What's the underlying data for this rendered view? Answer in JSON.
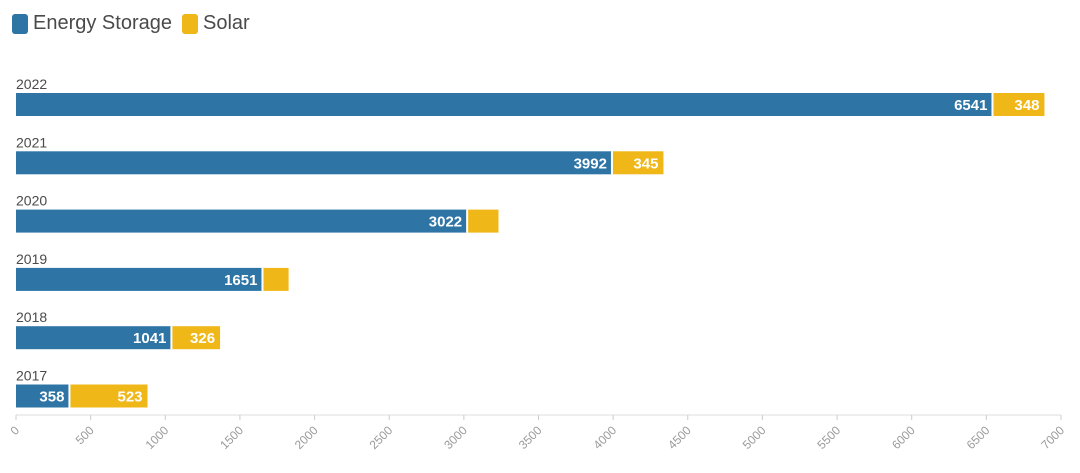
{
  "legend": {
    "items": [
      {
        "label": "Energy Storage",
        "color": "#2e75a6"
      },
      {
        "label": "Solar",
        "color": "#f0b719"
      }
    ]
  },
  "chart_data": {
    "type": "bar",
    "orientation": "horizontal",
    "stacked": true,
    "categories": [
      "2022",
      "2021",
      "2020",
      "2019",
      "2018",
      "2017"
    ],
    "series": [
      {
        "name": "Energy Storage",
        "color": "#2e75a6",
        "values": [
          6541,
          3992,
          3022,
          1651,
          1041,
          358
        ],
        "labels": [
          "6541",
          "3992",
          "3022",
          "1651",
          "1041",
          "358"
        ]
      },
      {
        "name": "Solar",
        "color": "#f0b719",
        "values": [
          348,
          345,
          210,
          175,
          326,
          523
        ],
        "labels": [
          "348",
          "345",
          "",
          "",
          "326",
          "523"
        ]
      }
    ],
    "xlim": [
      0,
      7000
    ],
    "xticks": [
      0,
      500,
      1000,
      1500,
      2000,
      2500,
      3000,
      3500,
      4000,
      4500,
      5000,
      5500,
      6000,
      6500,
      7000
    ],
    "grid": false,
    "legend_position": "top-left"
  }
}
